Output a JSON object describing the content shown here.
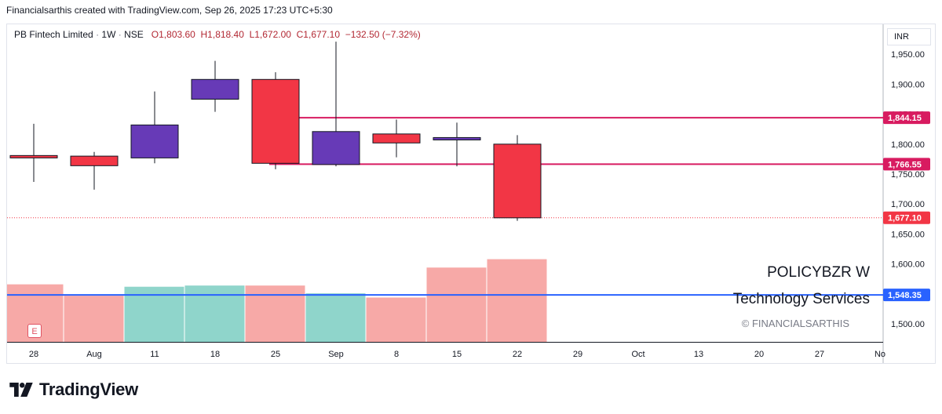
{
  "header": {
    "attribution": "Financialsarthis created with TradingView.com, Sep 26, 2025 17:23 UTC+5:30"
  },
  "legend": {
    "symbol": "PB Fintech Limited",
    "interval": "1W",
    "exchange": "NSE",
    "open": "O1,803.60",
    "high": "H1,818.40",
    "low": "L1,672.00",
    "close": "C1,677.10",
    "change": "−132.50 (−7.32%)"
  },
  "currency": "INR",
  "overlay": {
    "ticker": "POLICYBZR W",
    "sector": "Technology Services",
    "copyright": "© FINANCIALSARTHIS"
  },
  "earnings_badge": "E",
  "brand": {
    "name": "TradingView"
  },
  "colors": {
    "up": "#673ab7",
    "down": "#f23645",
    "vol_up": "#8fd5cb",
    "vol_down": "#f7a9a7",
    "level": "#d81b60",
    "volume_line": "#2962ff",
    "last": "#f23645"
  },
  "chart_data": {
    "type": "candlestick",
    "x_ticks": [
      "28",
      "Aug",
      "11",
      "18",
      "25",
      "Sep",
      "8",
      "15",
      "22",
      "29",
      "Oct",
      "13",
      "20",
      "27",
      "No"
    ],
    "candles": [
      {
        "x": "28",
        "open": 1781,
        "high": 1834,
        "low": 1737,
        "close": 1777
      },
      {
        "x": "Aug",
        "open": 1780,
        "high": 1787,
        "low": 1724,
        "close": 1764
      },
      {
        "x": "11",
        "open": 1777,
        "high": 1888,
        "low": 1768,
        "close": 1832
      },
      {
        "x": "18",
        "open": 1875,
        "high": 1939,
        "low": 1854,
        "close": 1908
      },
      {
        "x": "25",
        "open": 1908,
        "high": 1920,
        "low": 1758,
        "close": 1768
      },
      {
        "x": "Sep",
        "open": 1766,
        "high": 1971,
        "low": 1763,
        "close": 1821
      },
      {
        "x": "8",
        "open": 1817,
        "high": 1841,
        "low": 1778,
        "close": 1802
      },
      {
        "x": "15",
        "open": 1807,
        "high": 1836,
        "low": 1763,
        "close": 1811
      },
      {
        "x": "22",
        "open": 1800,
        "high": 1815,
        "low": 1672,
        "close": 1677
      }
    ],
    "volume_bars": [
      {
        "x": "28",
        "value": 1566,
        "direction": "down"
      },
      {
        "x": "Aug",
        "value": 1547,
        "direction": "down"
      },
      {
        "x": "11",
        "value": 1562,
        "direction": "up"
      },
      {
        "x": "18",
        "value": 1564,
        "direction": "up"
      },
      {
        "x": "25",
        "value": 1564,
        "direction": "down"
      },
      {
        "x": "Sep",
        "value": 1551,
        "direction": "up"
      },
      {
        "x": "8",
        "value": 1544,
        "direction": "down"
      },
      {
        "x": "15",
        "value": 1594,
        "direction": "down"
      },
      {
        "x": "22",
        "value": 1608,
        "direction": "down"
      }
    ],
    "y_ticks": [
      "1,950.00",
      "1,900.00",
      "1,850.00",
      "1,800.00",
      "1,750.00",
      "1,700.00",
      "1,650.00",
      "1,600.00",
      "1,550.00",
      "1,500.00"
    ],
    "y_tick_values": [
      1950,
      1900,
      1850,
      1800,
      1750,
      1700,
      1650,
      1600,
      1550,
      1500
    ],
    "ylim": [
      1470,
      2000
    ],
    "levels": [
      {
        "value": 1844.15,
        "label": "1,844.15",
        "from": "25"
      },
      {
        "value": 1766.55,
        "label": "1,766.55",
        "from": "25"
      }
    ],
    "last_price": {
      "value": 1677.1,
      "label": "1,677.10"
    },
    "volume_line": {
      "value": 1548.35,
      "label": "1,548.35"
    }
  }
}
